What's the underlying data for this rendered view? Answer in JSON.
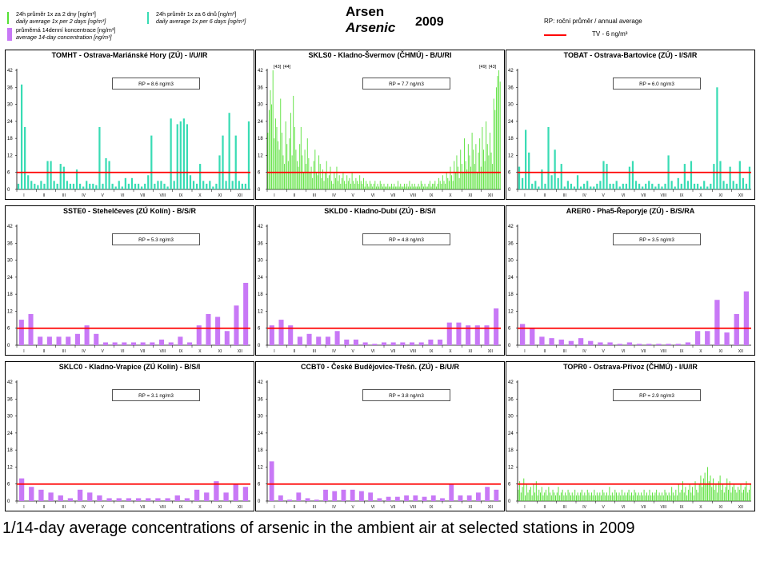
{
  "legend": {
    "green_cz": "24h průměr 1x za 2 dny [ng/m³]",
    "green_en": "daily average 1x per 2 days [ng/m³]",
    "teal_cz": "24h průměr 1x za 6 dnů [ng/m³]",
    "teal_en": "daily average 1x per 6 days [ng/m³]",
    "purple_cz": "průměrná 14denní koncentrace [ng/m³]",
    "purple_en": "average 14-day concentration [ng/m³]",
    "rp": "RP: roční průměr / annual average",
    "tv": "TV - 6 ng/m³",
    "colors": {
      "green": "#55e035",
      "teal": "#38dcb4",
      "purple": "#c878f6",
      "limit": "#ff0000"
    }
  },
  "title": {
    "cz": "Arsen",
    "en": "Arsenic",
    "year": "2009"
  },
  "caption": "1/14-day average concentrations of arsenic in the ambient air at selected stations in 2009",
  "chart_data": [
    {
      "type": "bar",
      "title": "TOMHT - Ostrava-Mariánské Hory (ZÚ) - I/U/IR",
      "rp": "RP = 8.6 ng/m3",
      "style": "teal",
      "limit": 6,
      "ylim": [
        0,
        42
      ],
      "yticks": [
        0,
        6,
        12,
        18,
        24,
        30,
        36,
        42
      ],
      "months": [
        "I",
        "II",
        "III",
        "IV",
        "V",
        "VI",
        "VII",
        "VIII",
        "IX",
        "X",
        "XI",
        "XII"
      ],
      "values": [
        2,
        37,
        22,
        5,
        3,
        2,
        1.5,
        3,
        2,
        10,
        10,
        3,
        2,
        9,
        8,
        3,
        2,
        2,
        7,
        2,
        1,
        3,
        2,
        2,
        1.5,
        22,
        2,
        11,
        10,
        2,
        1,
        3,
        1,
        4,
        2,
        4,
        2,
        2,
        1,
        2,
        5,
        19,
        2,
        3,
        3,
        2,
        1,
        25,
        3,
        23,
        24,
        25,
        23,
        5,
        3,
        2,
        9,
        3,
        2,
        3,
        1,
        2,
        12,
        19,
        3,
        27,
        3,
        19,
        3,
        2,
        2,
        24
      ]
    },
    {
      "type": "bar",
      "title": "SKLS0 - Kladno-Švermov (ČHMÚ) - B/U/RI",
      "rp": "RP = 7.7 ng/m3",
      "style": "green",
      "limit": 6,
      "ylim": [
        0,
        42
      ],
      "yticks": [
        0,
        6,
        12,
        18,
        24,
        30,
        36,
        42
      ],
      "months": [
        "I",
        "II",
        "III",
        "IV",
        "V",
        "VI",
        "VII",
        "VIII",
        "IX",
        "X",
        "XI",
        "XII"
      ],
      "top_labels": [
        "[43]",
        "[44]",
        "[49]",
        "[43]"
      ],
      "values": [
        20,
        28,
        35,
        30,
        42,
        18,
        25,
        22,
        17,
        14,
        32,
        20,
        12,
        9,
        24,
        16,
        10,
        18,
        27,
        12,
        33,
        22,
        14,
        10,
        8,
        16,
        22,
        12,
        6,
        14,
        9,
        18,
        11,
        6,
        8,
        4,
        10,
        14,
        6,
        5,
        12,
        9,
        4,
        7,
        3,
        6,
        10,
        4,
        5,
        8,
        3,
        2,
        6,
        4,
        8,
        3,
        5,
        2,
        4,
        6,
        3,
        2,
        5,
        3,
        4,
        2,
        6,
        3,
        2,
        4,
        3,
        2,
        5,
        3,
        2,
        4,
        1,
        3,
        2,
        1,
        3,
        2,
        1,
        2,
        3,
        1,
        2,
        1,
        3,
        2,
        1,
        2,
        1,
        1,
        2,
        1,
        1,
        2,
        1,
        2,
        1,
        1,
        3,
        1,
        2,
        1,
        1,
        2,
        1,
        2,
        1,
        3,
        1,
        2,
        1,
        2,
        1,
        1,
        2,
        1,
        3,
        2,
        1,
        2,
        1,
        1,
        2,
        3,
        1,
        2,
        2,
        3,
        1,
        2,
        4,
        3,
        2,
        5,
        3,
        2,
        6,
        4,
        3,
        8,
        5,
        3,
        10,
        6,
        12,
        8,
        4,
        14,
        9,
        6,
        18,
        10,
        7,
        16,
        12,
        8,
        20,
        14,
        9,
        16,
        6,
        13,
        18,
        8,
        22,
        14,
        10,
        24,
        16,
        12,
        20,
        13,
        9,
        32,
        28,
        36,
        40,
        42,
        38
      ]
    },
    {
      "type": "bar",
      "title": "TOBAT - Ostrava-Bartovice (ZÚ) - I/S/IR",
      "rp": "RP = 6.0 ng/m3",
      "style": "teal",
      "limit": 6,
      "ylim": [
        0,
        42
      ],
      "yticks": [
        0,
        6,
        12,
        18,
        24,
        30,
        36,
        42
      ],
      "months": [
        "I",
        "II",
        "III",
        "IV",
        "V",
        "VI",
        "VII",
        "VIII",
        "IX",
        "X",
        "XI",
        "XII"
      ],
      "values": [
        8,
        4,
        21,
        13,
        2,
        3,
        1,
        7,
        2,
        22,
        5,
        14,
        4,
        9,
        1,
        3,
        2,
        1,
        5,
        1,
        2,
        3,
        1,
        1,
        2,
        3,
        10,
        9,
        2,
        2,
        3,
        1,
        2,
        2,
        8,
        10,
        3,
        2,
        1,
        2,
        3,
        2,
        1,
        2,
        1,
        2,
        12,
        3,
        1,
        4,
        2,
        9,
        3,
        10,
        2,
        2,
        1,
        3,
        1,
        2,
        9,
        36,
        10,
        3,
        2,
        8,
        3,
        2,
        10,
        4,
        2,
        8
      ]
    },
    {
      "type": "bar",
      "title": "SSTE0 - Stehelčeves (ZÚ Kolín) - B/S/R",
      "rp": "RP = 5.3 ng/m3",
      "style": "purple",
      "limit": 6,
      "ylim": [
        0,
        42
      ],
      "yticks": [
        0,
        6,
        12,
        18,
        24,
        30,
        36,
        42
      ],
      "months": [
        "I",
        "II",
        "III",
        "IV",
        "V",
        "VI",
        "VII",
        "VIII",
        "IX",
        "X",
        "XI",
        "XII"
      ],
      "values": [
        9,
        11,
        3,
        3,
        3,
        3,
        4,
        7,
        4,
        1,
        1,
        1,
        1,
        1,
        1,
        2,
        1,
        3,
        1,
        7,
        11,
        10,
        5,
        14,
        22
      ]
    },
    {
      "type": "bar",
      "title": "SKLD0 - Kladno-Dubí (ZÚ) - B/S/I",
      "rp": "RP = 4.8 ng/m3",
      "style": "purple",
      "limit": 6,
      "ylim": [
        0,
        42
      ],
      "yticks": [
        0,
        6,
        12,
        18,
        24,
        30,
        36,
        42
      ],
      "months": [
        "I",
        "II",
        "III",
        "IV",
        "V",
        "VI",
        "VII",
        "VIII",
        "IX",
        "X",
        "XI",
        "XII"
      ],
      "values": [
        7,
        9,
        7,
        3,
        4,
        3,
        3,
        5,
        2,
        2,
        1,
        0.5,
        1,
        1,
        1,
        1,
        1,
        2,
        2,
        8,
        8,
        7,
        7,
        7,
        13
      ]
    },
    {
      "type": "bar",
      "title": "ARER0 - Pha5-Řeporyje (ZÚ) - B/S/RA",
      "rp": "RP = 3.5 ng/m3",
      "style": "purple",
      "limit": 6,
      "ylim": [
        0,
        42
      ],
      "yticks": [
        0,
        6,
        12,
        18,
        24,
        30,
        36,
        42
      ],
      "months": [
        "I",
        "II",
        "III",
        "IV",
        "V",
        "VI",
        "VII",
        "VIII",
        "IX",
        "X",
        "XI",
        "XII"
      ],
      "values": [
        7.5,
        6,
        3,
        2.5,
        2,
        1.5,
        2.5,
        1.5,
        1,
        1,
        0.5,
        1,
        0.5,
        0.5,
        0.5,
        0.5,
        0.5,
        1,
        5,
        5,
        16,
        4.5,
        11,
        19
      ]
    },
    {
      "type": "bar",
      "title": "SKLC0 - Kladno-Vrapice (ZÚ Kolín) - B/S/I",
      "rp": "RP = 3.1 ng/m3",
      "style": "purple",
      "limit": 6,
      "ylim": [
        0,
        42
      ],
      "yticks": [
        0,
        6,
        12,
        18,
        24,
        30,
        36,
        42
      ],
      "months": [
        "I",
        "II",
        "III",
        "IV",
        "V",
        "VI",
        "VII",
        "VIII",
        "IX",
        "X",
        "XI",
        "XII"
      ],
      "values": [
        8,
        5,
        4,
        3,
        2,
        1,
        4,
        3,
        2,
        1,
        1,
        1,
        1,
        1,
        1,
        1,
        2,
        1,
        4,
        3,
        7,
        3,
        6,
        5
      ]
    },
    {
      "type": "bar",
      "title": "CCBT0 - České Budějovice-Třešň. (ZÚ) - B/U/R",
      "rp": "RP = 3.8 ng/m3",
      "style": "purple",
      "limit": 6,
      "ylim": [
        0,
        42
      ],
      "yticks": [
        0,
        6,
        12,
        18,
        24,
        30,
        36,
        42
      ],
      "months": [
        "I",
        "II",
        "III",
        "IV",
        "V",
        "VI",
        "VII",
        "VIII",
        "IX",
        "X",
        "XI",
        "XII"
      ],
      "values": [
        14,
        2,
        0.5,
        3,
        1,
        0.5,
        4,
        3.5,
        4,
        4,
        3.5,
        3,
        1,
        1.5,
        1.5,
        2,
        2,
        1.5,
        2,
        1,
        6,
        2,
        2,
        3,
        5,
        4
      ]
    },
    {
      "type": "bar",
      "title": "TOPR0 - Ostrava-Přívoz (ČHMÚ) - I/U/IR",
      "rp": "RP = 2.9 ng/m3",
      "style": "green",
      "limit": 6,
      "ylim": [
        0,
        42
      ],
      "yticks": [
        0,
        6,
        12,
        18,
        24,
        30,
        36,
        42
      ],
      "months": [
        "I",
        "II",
        "III",
        "IV",
        "V",
        "VI",
        "VII",
        "VIII",
        "IX",
        "X",
        "XI",
        "XII"
      ],
      "values": [
        4,
        7,
        3,
        5,
        8,
        2,
        6,
        3,
        4,
        5,
        2,
        6,
        3,
        7,
        2,
        4,
        3,
        5,
        2,
        3,
        4,
        2,
        5,
        3,
        2,
        4,
        3,
        2,
        3,
        5,
        2,
        3,
        4,
        2,
        3,
        2,
        4,
        3,
        2,
        3,
        2,
        4,
        2,
        3,
        2,
        3,
        4,
        2,
        3,
        2,
        4,
        3,
        2,
        3,
        2,
        4,
        2,
        3,
        2,
        3,
        2,
        4,
        3,
        2,
        3,
        2,
        5,
        2,
        3,
        2,
        4,
        3,
        2,
        3,
        2,
        4,
        2,
        3,
        2,
        3,
        4,
        2,
        3,
        2,
        4,
        3,
        2,
        3,
        2,
        3,
        2,
        4,
        2,
        3,
        2,
        4,
        2,
        3,
        2,
        3,
        4,
        2,
        3,
        2,
        3,
        2,
        4,
        3,
        2,
        3,
        2,
        5,
        3,
        2,
        4,
        2,
        6,
        3,
        4,
        7,
        3,
        5,
        2,
        4,
        6,
        3,
        5,
        2,
        7,
        4,
        3,
        6,
        9,
        5,
        8,
        10,
        6,
        12,
        7,
        9,
        5,
        8,
        4,
        6,
        3,
        7,
        9,
        4,
        6,
        3,
        5,
        8,
        4,
        7,
        3,
        5,
        6,
        4,
        3,
        5,
        4,
        6,
        3,
        4,
        5,
        7,
        3,
        4,
        6
      ]
    }
  ]
}
